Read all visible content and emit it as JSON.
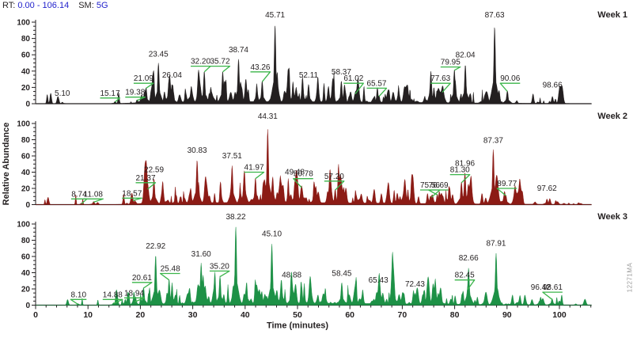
{
  "header": {
    "rt_label": "RT:",
    "rt_value": "0.00 - 106.14",
    "sm_label": "SM:",
    "sm_value": "5G",
    "value_color": "#2323cc"
  },
  "watermark": "12271MA",
  "chart_data": {
    "type": "line",
    "subtype": "chromatogram",
    "title": "",
    "xlabel": "Time (minutes)",
    "ylabel": "Relative Abundance",
    "xlim": [
      0,
      106.14
    ],
    "ylim": [
      0,
      100
    ],
    "x_ticks": [
      0,
      10,
      20,
      30,
      40,
      50,
      60,
      70,
      80,
      90,
      100
    ],
    "x_minor_step": 2,
    "y_ticks": [
      0,
      20,
      40,
      60,
      80,
      100
    ],
    "y_minor_step": 5,
    "axis_color": "#231f20",
    "leader_color": "#3bb54a",
    "grid": false,
    "legend_position": "right-of-each-panel",
    "series": [
      {
        "name": "Week 1",
        "color": "#231f20",
        "peaks": [
          {
            "label": "5.10",
            "t": 5.1,
            "a": 2,
            "la": 8
          },
          {
            "label": "15.17",
            "t": 15.17,
            "a": 3,
            "la": 8,
            "leader": true,
            "lt": 14.2
          },
          {
            "label": "19.38",
            "t": 19.38,
            "a": 5,
            "la": 9,
            "leader": true,
            "lt": 19.0
          },
          {
            "label": "21.09",
            "t": 21.09,
            "a": 20,
            "la": 26,
            "leader": true,
            "lt": 20.6
          },
          {
            "label": "23.45",
            "t": 23.45,
            "a": 50,
            "la": 56
          },
          {
            "label": "26.04",
            "t": 26.04,
            "a": 24,
            "la": 30
          },
          {
            "label": "32.20",
            "t": 32.2,
            "a": 40,
            "la": 47,
            "leader": true,
            "lt": 31.5
          },
          {
            "label": "35.72",
            "t": 35.72,
            "a": 40,
            "la": 47,
            "leader": true,
            "lt": 35.2
          },
          {
            "label": "38.74",
            "t": 38.74,
            "a": 55,
            "la": 61
          },
          {
            "label": "43.26",
            "t": 43.26,
            "a": 28,
            "la": 40,
            "leader": true,
            "lt": 42.9
          },
          {
            "label": "45.71",
            "t": 45.71,
            "a": 97,
            "la": 104
          },
          {
            "label": "52.11",
            "t": 52.11,
            "a": 24,
            "la": 30
          },
          {
            "label": "58.37",
            "t": 58.37,
            "a": 28,
            "la": 34
          },
          {
            "label": "61.02",
            "t": 61.02,
            "a": 13,
            "la": 26,
            "leader": true,
            "lt": 60.7
          },
          {
            "label": "65.57",
            "t": 65.57,
            "a": 10,
            "la": 20,
            "leader": true,
            "lt": 65.1
          },
          {
            "label": "77.63",
            "t": 77.63,
            "a": 15,
            "la": 26,
            "leader": true,
            "lt": 77.3
          },
          {
            "label": "79.95",
            "t": 79.95,
            "a": 42,
            "la": 46,
            "leader": true,
            "lt": 79.2
          },
          {
            "label": "82.04",
            "t": 82.04,
            "a": 48,
            "la": 55
          },
          {
            "label": "87.63",
            "t": 87.63,
            "a": 95,
            "la": 104
          },
          {
            "label": "90.06",
            "t": 90.06,
            "a": 16,
            "la": 26,
            "leader": true,
            "lt": 90.6
          },
          {
            "label": "98.66",
            "t": 98.66,
            "a": 9,
            "la": 18
          }
        ]
      },
      {
        "name": "Week 2",
        "color": "#8c1b15",
        "peaks": [
          {
            "label": "8.74",
            "t": 8.74,
            "a": 2,
            "la": 8,
            "leader": true,
            "lt": 8.3
          },
          {
            "label": "11.08",
            "t": 11.08,
            "a": 4,
            "la": 8,
            "leader": true,
            "lt": 11.0
          },
          {
            "label": "18.57",
            "t": 18.57,
            "a": 6,
            "la": 9,
            "leader": true,
            "lt": 18.4
          },
          {
            "label": "21.37",
            "t": 21.37,
            "a": 20,
            "la": 28,
            "leader": true,
            "lt": 21.0
          },
          {
            "label": "22.59",
            "t": 22.59,
            "a": 32,
            "la": 38
          },
          {
            "label": "30.83",
            "t": 30.83,
            "a": 55,
            "la": 62
          },
          {
            "label": "37.51",
            "t": 37.51,
            "a": 48,
            "la": 55
          },
          {
            "label": "41.97",
            "t": 41.97,
            "a": 33,
            "la": 41,
            "leader": true,
            "lt": 41.7
          },
          {
            "label": "44.31",
            "t": 44.31,
            "a": 93,
            "la": 104
          },
          {
            "label": "49.48",
            "t": 49.48,
            "a": 28,
            "la": 35
          },
          {
            "label": "50.78",
            "t": 50.78,
            "a": 22,
            "la": 33,
            "leader": true,
            "lt": 51.1
          },
          {
            "label": "57.20",
            "t": 57.2,
            "a": 19,
            "la": 30,
            "leader": true,
            "lt": 57.0
          },
          {
            "label": "75.56",
            "t": 75.56,
            "a": 10,
            "la": 19,
            "leader": true,
            "lt": 75.3
          },
          {
            "label": "76.69",
            "t": 76.69,
            "a": 13,
            "la": 19,
            "leader": true,
            "lt": 76.9
          },
          {
            "label": "81.30",
            "t": 81.3,
            "a": 28,
            "la": 38,
            "leader": true,
            "lt": 81.0
          },
          {
            "label": "81.96",
            "t": 81.96,
            "a": 40,
            "la": 46
          },
          {
            "label": "87.37",
            "t": 87.37,
            "a": 68,
            "la": 74
          },
          {
            "label": "89.77",
            "t": 89.77,
            "a": 12,
            "la": 21,
            "leader": true,
            "lt": 90.0
          },
          {
            "label": "97.62",
            "t": 97.62,
            "a": 7,
            "la": 15
          }
        ]
      },
      {
        "name": "Week 3",
        "color": "#1d9146",
        "peaks": [
          {
            "label": "8.10",
            "t": 8.1,
            "a": 2,
            "la": 8,
            "leader": true,
            "lt": 8.2
          },
          {
            "label": "14.88",
            "t": 14.88,
            "a": 3,
            "la": 8,
            "leader": true,
            "lt": 14.7
          },
          {
            "label": "18.94",
            "t": 18.94,
            "a": 5,
            "la": 10,
            "leader": true,
            "lt": 18.8
          },
          {
            "label": "20.61",
            "t": 20.61,
            "a": 22,
            "la": 29,
            "leader": true,
            "lt": 20.3
          },
          {
            "label": "22.92",
            "t": 22.92,
            "a": 62,
            "la": 68
          },
          {
            "label": "25.48",
            "t": 25.48,
            "a": 32,
            "la": 40,
            "leader": true,
            "lt": 25.7
          },
          {
            "label": "31.60",
            "t": 31.6,
            "a": 52,
            "la": 58
          },
          {
            "label": "35.20",
            "t": 35.2,
            "a": 36,
            "la": 43,
            "leader": true,
            "lt": 35.1
          },
          {
            "label": "38.22",
            "t": 38.22,
            "a": 97,
            "la": 104
          },
          {
            "label": "45.10",
            "t": 45.1,
            "a": 76,
            "la": 83
          },
          {
            "label": "48.88",
            "t": 48.88,
            "a": 26,
            "la": 32
          },
          {
            "label": "58.45",
            "t": 58.45,
            "a": 28,
            "la": 34
          },
          {
            "label": "65.43",
            "t": 65.43,
            "a": 20,
            "la": 26
          },
          {
            "label": "72.43",
            "t": 72.43,
            "a": 15,
            "la": 21
          },
          {
            "label": "82.45",
            "t": 82.45,
            "a": 20,
            "la": 32,
            "leader": true,
            "lt": 81.9
          },
          {
            "label": "82.66",
            "t": 82.66,
            "a": 46,
            "la": 53
          },
          {
            "label": "87.91",
            "t": 87.91,
            "a": 64,
            "la": 71
          },
          {
            "label": "96.42",
            "t": 96.42,
            "a": 10,
            "la": 17
          },
          {
            "label": "98.61",
            "t": 98.61,
            "a": 8,
            "la": 17,
            "leader": true,
            "lt": 98.7
          }
        ]
      }
    ]
  }
}
